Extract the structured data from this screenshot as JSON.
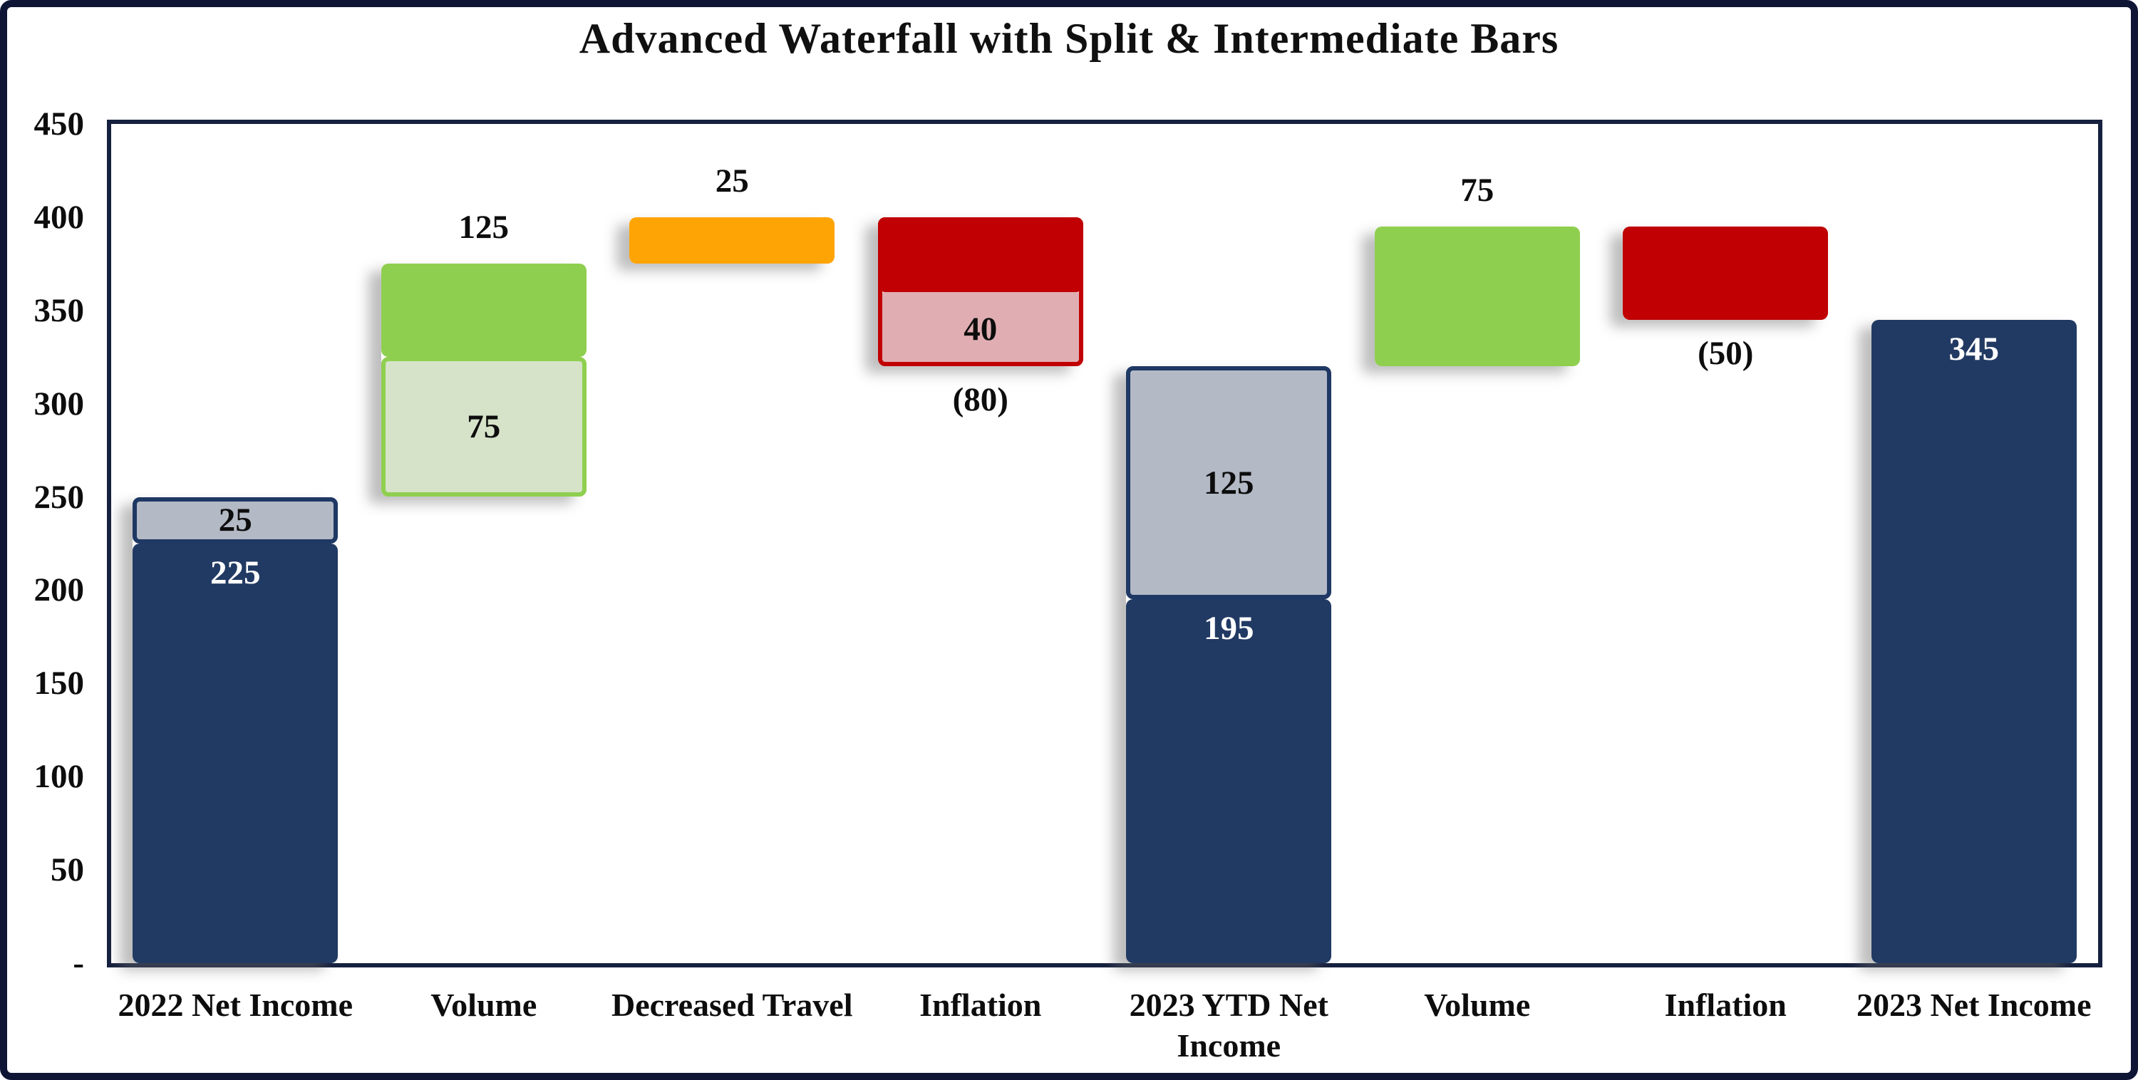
{
  "title": "Advanced Waterfall with Split & Intermediate Bars",
  "palette": {
    "navy": {
      "fill": "#213A63"
    },
    "gray": {
      "fill": "#B3B9C5",
      "border": "#1F3864"
    },
    "green": {
      "fill": "#8FCF4F"
    },
    "light-green": {
      "fill": "#D6E3C9",
      "border": "#8FCF4F"
    },
    "orange": {
      "fill": "#FFA405"
    },
    "red": {
      "fill": "#C00002"
    },
    "pink": {
      "fill": "#E0AEB2"
    },
    "axis": "#16213f",
    "frame": "#0f1535",
    "label_dark": "#0d0d0d",
    "label_light": "#ffffff"
  },
  "chart_data": {
    "type": "bar",
    "subtype": "waterfall",
    "title": "Advanced Waterfall with Split & Intermediate Bars",
    "xlabel": "",
    "ylabel": "",
    "ylim": [
      0,
      450
    ],
    "grid": false,
    "legend": false,
    "y_ticks": [
      {
        "v": 450,
        "label": "450"
      },
      {
        "v": 400,
        "label": "400"
      },
      {
        "v": 350,
        "label": "350"
      },
      {
        "v": 300,
        "label": "300"
      },
      {
        "v": 250,
        "label": "250"
      },
      {
        "v": 200,
        "label": "200"
      },
      {
        "v": 150,
        "label": "150"
      },
      {
        "v": 100,
        "label": "100"
      },
      {
        "v": 50,
        "label": "50"
      },
      {
        "v": 0,
        "label": "-"
      }
    ],
    "categories": [
      "2022 Net Income",
      "Volume",
      "Decreased Travel",
      "Inflation",
      "2023 YTD Net Income",
      "Volume",
      "Inflation",
      "2023 Net Income"
    ],
    "bars": [
      {
        "category": "2022 Net Income",
        "segments": [
          {
            "from": 225,
            "to": 250,
            "style": "gray",
            "label": "25",
            "label_pos": "center",
            "label_color": "dark"
          },
          {
            "from": 0,
            "to": 225,
            "style": "navy",
            "label": "225",
            "label_pos": "inside-top",
            "label_color": "light"
          }
        ]
      },
      {
        "category": "Volume",
        "segments": [
          {
            "from": 325,
            "to": 375,
            "style": "green"
          },
          {
            "from": 250,
            "to": 325,
            "style": "light-green",
            "label": "75",
            "label_pos": "center",
            "label_color": "dark"
          }
        ],
        "total_label": {
          "text": "125",
          "pos": "above"
        }
      },
      {
        "category": "Decreased Travel",
        "segments": [
          {
            "from": 375,
            "to": 400,
            "style": "orange"
          }
        ],
        "total_label": {
          "text": "25",
          "pos": "above"
        }
      },
      {
        "category": "Inflation",
        "segments": [
          {
            "from": 360,
            "to": 400,
            "style": "red"
          },
          {
            "from": 320,
            "to": 360,
            "style": "pink",
            "label": "40",
            "label_pos": "center",
            "label_color": "dark"
          }
        ],
        "outline": "red",
        "total_label": {
          "text": "(80)",
          "pos": "below"
        }
      },
      {
        "category": "2023 YTD Net Income",
        "segments": [
          {
            "from": 195,
            "to": 320,
            "style": "gray",
            "label": "125",
            "label_pos": "center",
            "label_color": "dark"
          },
          {
            "from": 0,
            "to": 195,
            "style": "navy",
            "label": "195",
            "label_pos": "inside-top",
            "label_color": "light"
          }
        ]
      },
      {
        "category": "Volume",
        "segments": [
          {
            "from": 320,
            "to": 395,
            "style": "green"
          }
        ],
        "total_label": {
          "text": "75",
          "pos": "above"
        }
      },
      {
        "category": "Inflation",
        "segments": [
          {
            "from": 345,
            "to": 395,
            "style": "red"
          }
        ],
        "total_label": {
          "text": "(50)",
          "pos": "below"
        }
      },
      {
        "category": "2023 Net Income",
        "segments": [
          {
            "from": 0,
            "to": 345,
            "style": "navy",
            "label": "345",
            "label_pos": "inside-top",
            "label_color": "light"
          }
        ]
      }
    ]
  }
}
